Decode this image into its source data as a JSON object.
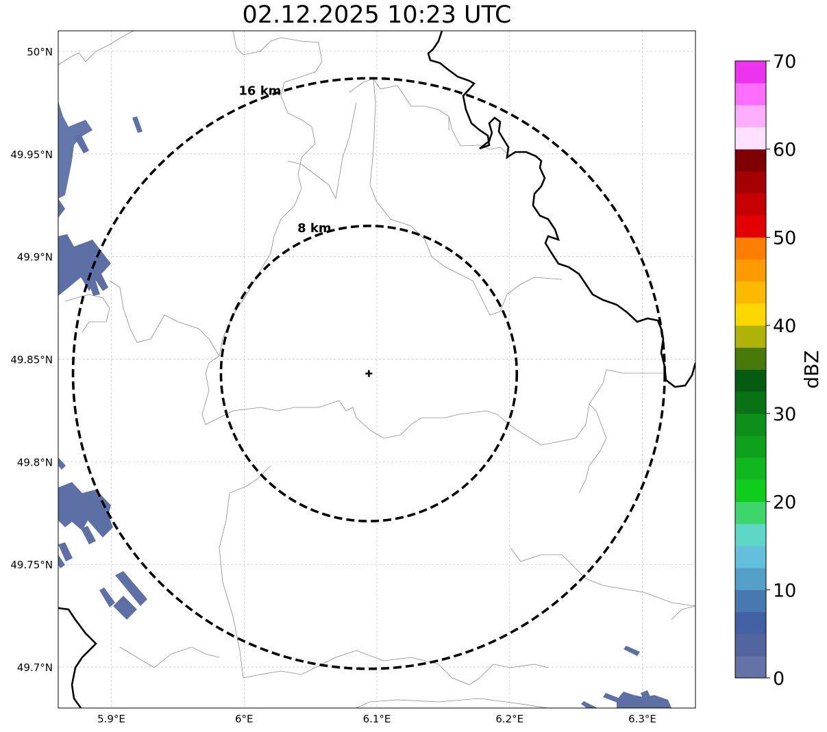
{
  "title": "02.12.2025 10:23 UTC",
  "map": {
    "lon_range": [
      5.86,
      6.34
    ],
    "lat_range": [
      49.68,
      50.01
    ],
    "lon_ticks": [
      {
        "value": 5.9,
        "label": "5.9°E"
      },
      {
        "value": 6.0,
        "label": "6°E"
      },
      {
        "value": 6.1,
        "label": "6.1°E"
      },
      {
        "value": 6.2,
        "label": "6.2°E"
      },
      {
        "value": 6.3,
        "label": "6.3°E"
      }
    ],
    "lat_ticks": [
      {
        "value": 50.0,
        "label": "50°N"
      },
      {
        "value": 49.95,
        "label": "49.95°N"
      },
      {
        "value": 49.9,
        "label": "49.9°N"
      },
      {
        "value": 49.85,
        "label": "49.85°N"
      },
      {
        "value": 49.8,
        "label": "49.8°N"
      },
      {
        "value": 49.75,
        "label": "49.75°N"
      },
      {
        "value": 49.7,
        "label": "49.7°N"
      }
    ],
    "gridlines": true,
    "radar_center": {
      "lon": 6.094,
      "lat": 49.843
    },
    "range_rings": [
      {
        "radius_km": 8,
        "label": "8 km"
      },
      {
        "radius_km": 16,
        "label": "16 km"
      }
    ],
    "echo_color": "#5c70a6"
  },
  "colorbar": {
    "unit": "dBZ",
    "min": 0,
    "max": 70,
    "step": 2.5,
    "tick_labels": [
      "0",
      "10",
      "20",
      "30",
      "40",
      "50",
      "60",
      "70"
    ],
    "colors": [
      "#6373a6",
      "#53659e",
      "#4261a2",
      "#4878b0",
      "#53a0c8",
      "#63c0dd",
      "#5fd7c7",
      "#3dd66b",
      "#10cc1c",
      "#0fb81c",
      "#0ea21a",
      "#0d8f19",
      "#087215",
      "#055c10",
      "#477a0b",
      "#afb308",
      "#fdd800",
      "#fdb800",
      "#fd9a00",
      "#fd7e00",
      "#e30000",
      "#c60000",
      "#a40000",
      "#7e0000",
      "#ffe0ff",
      "#fdaefd",
      "#fd6efd",
      "#ee33ee"
    ]
  }
}
